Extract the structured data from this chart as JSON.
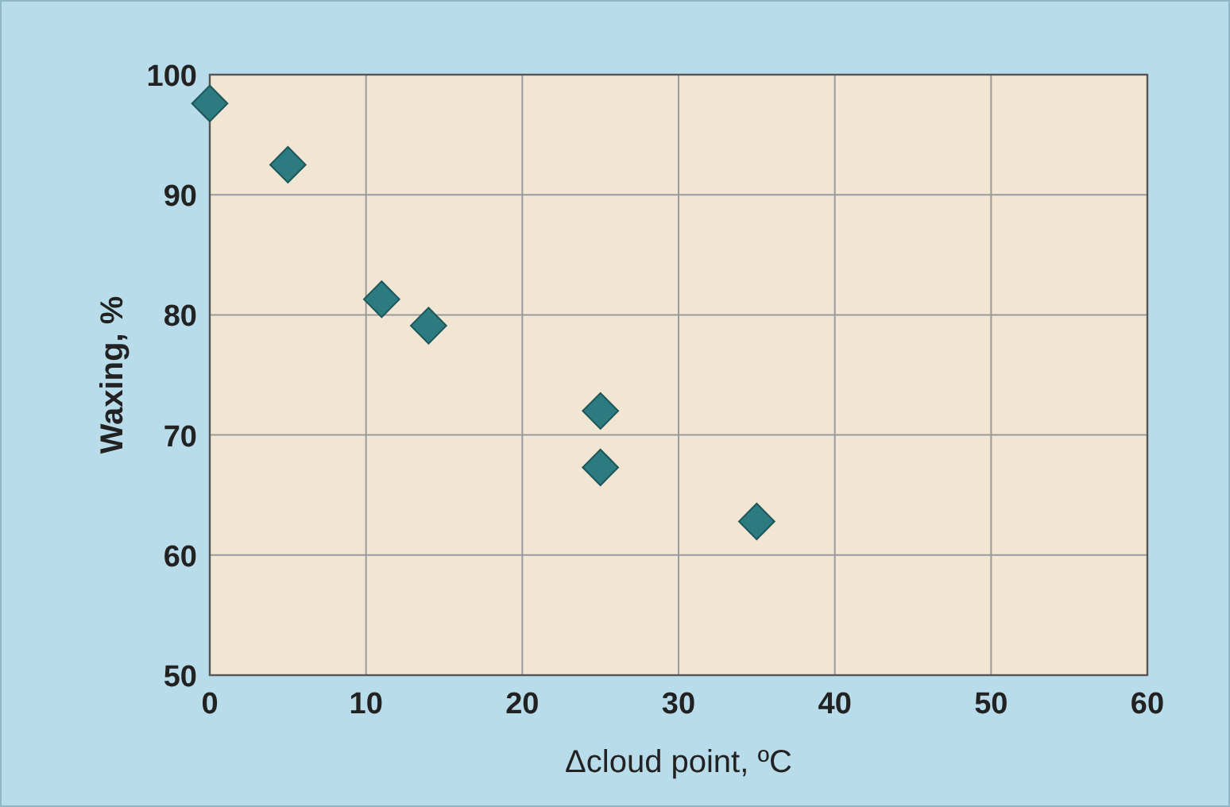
{
  "chart_data": {
    "type": "scatter",
    "xlabel": "Δcloud point, ºC",
    "ylabel": "Waxing, %",
    "x": [
      0,
      5,
      11,
      14,
      25,
      25,
      35
    ],
    "series": [
      {
        "color": "#2b7b80",
        "values": [
          97.6,
          92.5,
          81.3,
          79.1,
          72.0,
          67.3,
          62.8
        ]
      }
    ],
    "xlim": [
      0,
      60
    ],
    "xticks": [
      0,
      10,
      20,
      30,
      40,
      50,
      60
    ],
    "ylim": [
      50,
      100
    ],
    "yticks": [
      50,
      60,
      70,
      80,
      90,
      100
    ],
    "grid": true,
    "marker": "diamond"
  }
}
